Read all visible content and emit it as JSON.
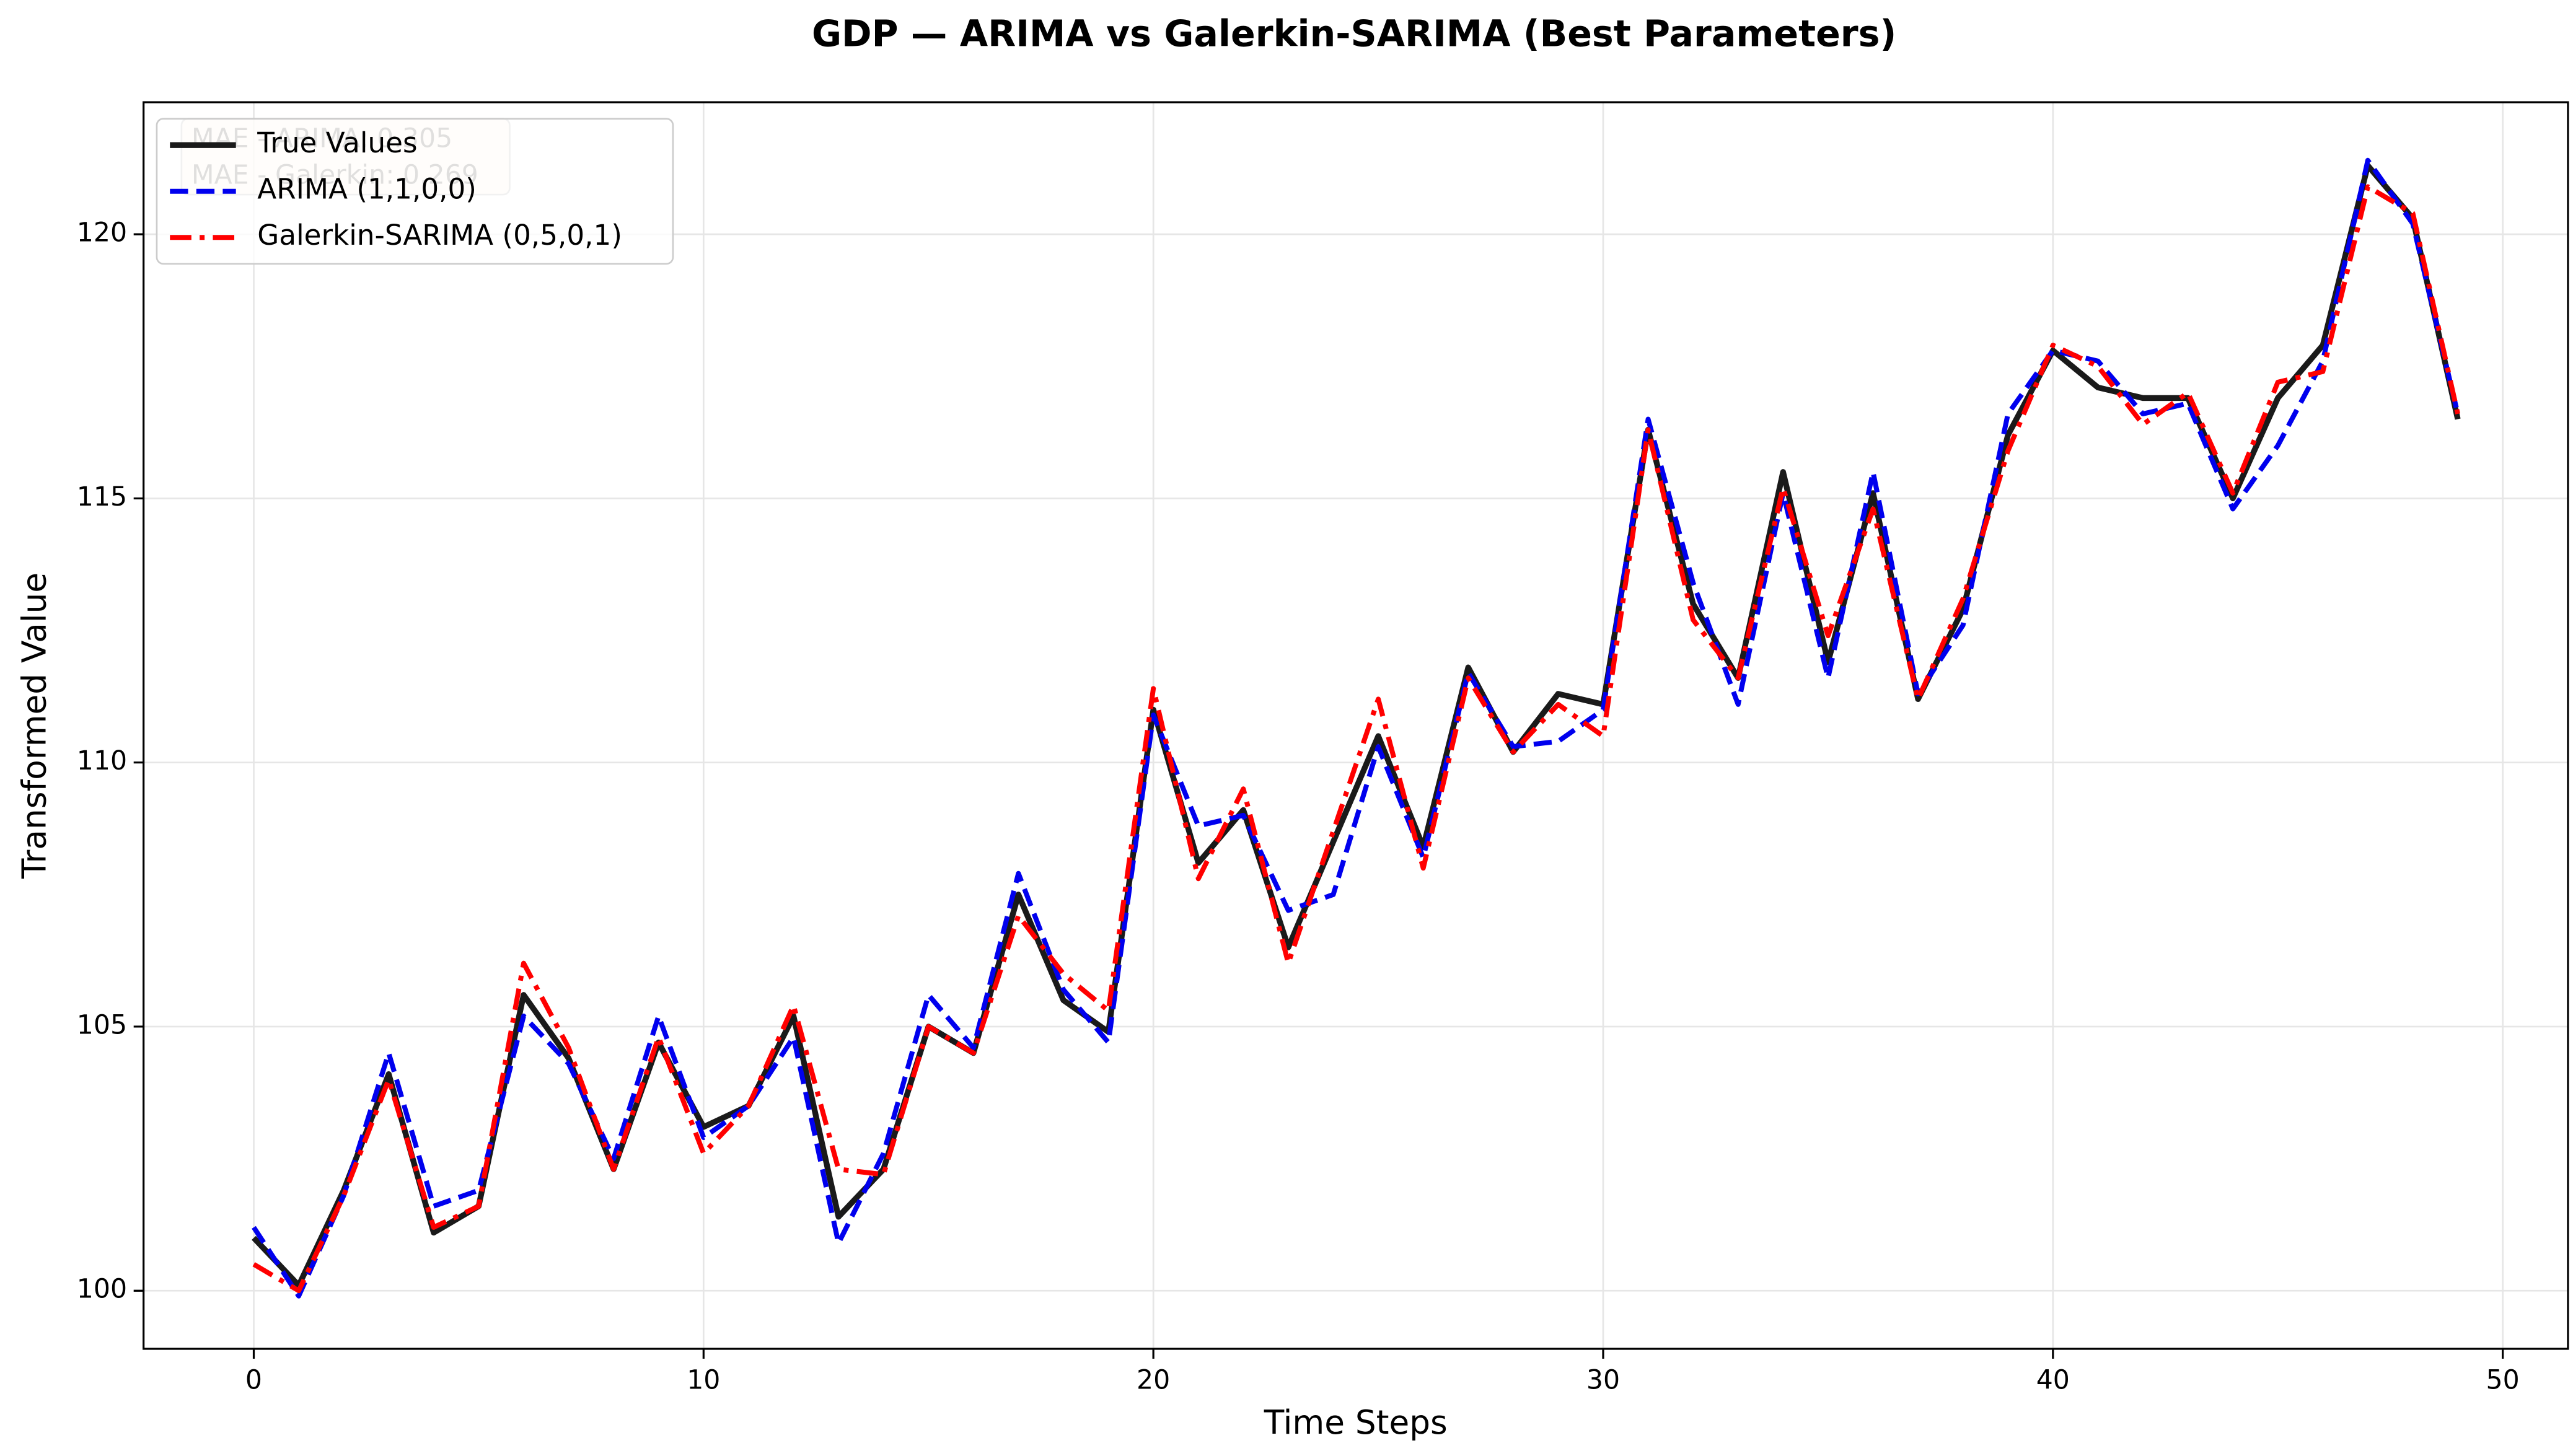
{
  "chart_data": {
    "type": "line",
    "title": "GDP — ARIMA vs Galerkin-SARIMA (Best Parameters)",
    "x_label": "Time Steps",
    "y_label": "Transformed Value",
    "annotations": [
      "MAE - ARIMA: 0.305",
      "MAE - Galerkin: 0.269"
    ],
    "x": [
      0,
      1,
      2,
      3,
      4,
      5,
      6,
      7,
      8,
      9,
      10,
      11,
      12,
      13,
      14,
      15,
      16,
      17,
      18,
      19,
      20,
      21,
      22,
      23,
      24,
      25,
      26,
      27,
      28,
      29,
      30,
      31,
      32,
      33,
      34,
      35,
      36,
      37,
      38,
      39,
      40,
      41,
      42,
      43,
      44,
      45,
      46,
      47,
      48,
      49
    ],
    "series": [
      {
        "name": "True Values",
        "color": "#1a1a1a",
        "linestyle": "solid",
        "values": [
          101.0,
          100.1,
          101.9,
          104.1,
          101.1,
          101.6,
          105.6,
          104.4,
          102.3,
          104.7,
          103.1,
          103.5,
          105.2,
          101.4,
          102.3,
          105.0,
          104.5,
          107.5,
          105.5,
          104.9,
          111.0,
          108.1,
          109.1,
          106.5,
          108.5,
          110.5,
          108.4,
          111.8,
          110.2,
          111.3,
          111.1,
          116.3,
          113.0,
          111.6,
          115.5,
          111.9,
          115.1,
          111.2,
          112.9,
          116.2,
          117.8,
          117.1,
          116.9,
          116.9,
          115.0,
          116.9,
          117.9,
          121.3,
          120.3,
          116.5
        ]
      },
      {
        "name": "ARIMA (1,1,0,0)",
        "color": "#0000ee",
        "linestyle": "dashed",
        "values": [
          101.2,
          99.9,
          101.8,
          104.5,
          101.6,
          101.9,
          105.2,
          104.3,
          102.5,
          105.2,
          102.9,
          103.5,
          104.8,
          100.9,
          102.6,
          105.6,
          104.6,
          107.9,
          105.7,
          104.7,
          110.9,
          108.8,
          109.0,
          107.2,
          107.5,
          110.3,
          108.2,
          111.7,
          110.3,
          110.4,
          111.0,
          116.5,
          113.4,
          111.1,
          115.1,
          111.6,
          115.5,
          111.3,
          112.6,
          116.6,
          117.8,
          117.6,
          116.6,
          116.8,
          114.8,
          116.0,
          117.6,
          121.4,
          120.2,
          116.6
        ]
      },
      {
        "name": "Galerkin-SARIMA (0,5,0,1)",
        "color": "#ff0000",
        "linestyle": "dashdot",
        "values": [
          100.5,
          100.0,
          101.8,
          104.0,
          101.2,
          101.6,
          106.2,
          104.6,
          102.3,
          104.8,
          102.6,
          103.5,
          105.4,
          102.3,
          102.2,
          105.0,
          104.5,
          107.1,
          106.0,
          105.3,
          111.4,
          107.8,
          109.5,
          106.2,
          108.7,
          111.2,
          108.0,
          111.6,
          110.2,
          111.1,
          110.5,
          116.3,
          112.7,
          111.6,
          115.2,
          112.4,
          114.8,
          111.2,
          113.1,
          115.9,
          117.9,
          117.5,
          116.4,
          117.0,
          115.1,
          117.2,
          117.4,
          120.9,
          120.4,
          116.6
        ]
      }
    ],
    "xlim": [
      -2.45,
      51.45
    ],
    "ylim": [
      98.9,
      122.5
    ],
    "xticks": [
      0,
      10,
      20,
      30,
      40,
      50
    ],
    "yticks": [
      100,
      105,
      110,
      115,
      120
    ],
    "grid": true,
    "legend": "upper left"
  }
}
